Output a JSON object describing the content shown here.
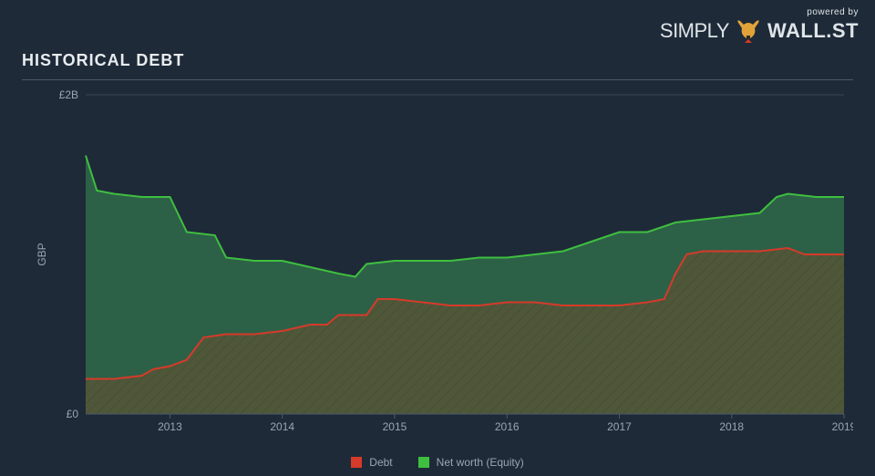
{
  "branding": {
    "powered_by": "powered by",
    "brand_simply": "SIMPLY",
    "brand_wallst": "WALL.ST"
  },
  "title": "HISTORICAL DEBT",
  "chart": {
    "type": "area",
    "background_color": "#1e2a38",
    "grid_color": "#4a5a6a",
    "axis_text_color": "#9aa6b2",
    "y_axis": {
      "label": "GBP",
      "ticks": [
        {
          "value": 0,
          "label": "£0"
        },
        {
          "value": 2.0,
          "label": "£2B"
        }
      ],
      "ylim": [
        0,
        2.0
      ]
    },
    "x_axis": {
      "xlim": [
        2012.25,
        2019.0
      ],
      "ticks": [
        2013,
        2014,
        2015,
        2016,
        2017,
        2018,
        2019
      ]
    },
    "series": [
      {
        "id": "total",
        "label": "Net worth (Equity)",
        "line_color": "#3fbf3f",
        "fill_color": "#2f6b4a",
        "fill_opacity": 0.85,
        "line_width": 2,
        "points": [
          {
            "x": 2012.25,
            "y": 1.62
          },
          {
            "x": 2012.35,
            "y": 1.4
          },
          {
            "x": 2012.5,
            "y": 1.38
          },
          {
            "x": 2012.75,
            "y": 1.36
          },
          {
            "x": 2013.0,
            "y": 1.36
          },
          {
            "x": 2013.15,
            "y": 1.14
          },
          {
            "x": 2013.4,
            "y": 1.12
          },
          {
            "x": 2013.5,
            "y": 0.98
          },
          {
            "x": 2013.75,
            "y": 0.96
          },
          {
            "x": 2014.0,
            "y": 0.96
          },
          {
            "x": 2014.25,
            "y": 0.92
          },
          {
            "x": 2014.5,
            "y": 0.88
          },
          {
            "x": 2014.65,
            "y": 0.86
          },
          {
            "x": 2014.75,
            "y": 0.94
          },
          {
            "x": 2015.0,
            "y": 0.96
          },
          {
            "x": 2015.5,
            "y": 0.96
          },
          {
            "x": 2015.75,
            "y": 0.98
          },
          {
            "x": 2016.0,
            "y": 0.98
          },
          {
            "x": 2016.25,
            "y": 1.0
          },
          {
            "x": 2016.5,
            "y": 1.02
          },
          {
            "x": 2016.75,
            "y": 1.08
          },
          {
            "x": 2017.0,
            "y": 1.14
          },
          {
            "x": 2017.25,
            "y": 1.14
          },
          {
            "x": 2017.5,
            "y": 1.2
          },
          {
            "x": 2017.75,
            "y": 1.22
          },
          {
            "x": 2018.0,
            "y": 1.24
          },
          {
            "x": 2018.25,
            "y": 1.26
          },
          {
            "x": 2018.4,
            "y": 1.36
          },
          {
            "x": 2018.5,
            "y": 1.38
          },
          {
            "x": 2018.75,
            "y": 1.36
          },
          {
            "x": 2019.0,
            "y": 1.36
          }
        ]
      },
      {
        "id": "debt",
        "label": "Debt",
        "line_color": "#d63a2a",
        "fill_color": "#5a5436",
        "fill_opacity": 0.78,
        "hatch": true,
        "hatch_color": "#3a3a2a",
        "line_width": 2,
        "points": [
          {
            "x": 2012.25,
            "y": 0.22
          },
          {
            "x": 2012.5,
            "y": 0.22
          },
          {
            "x": 2012.75,
            "y": 0.24
          },
          {
            "x": 2012.85,
            "y": 0.28
          },
          {
            "x": 2013.0,
            "y": 0.3
          },
          {
            "x": 2013.15,
            "y": 0.34
          },
          {
            "x": 2013.3,
            "y": 0.48
          },
          {
            "x": 2013.5,
            "y": 0.5
          },
          {
            "x": 2013.75,
            "y": 0.5
          },
          {
            "x": 2014.0,
            "y": 0.52
          },
          {
            "x": 2014.25,
            "y": 0.56
          },
          {
            "x": 2014.4,
            "y": 0.56
          },
          {
            "x": 2014.5,
            "y": 0.62
          },
          {
            "x": 2014.75,
            "y": 0.62
          },
          {
            "x": 2014.85,
            "y": 0.72
          },
          {
            "x": 2015.0,
            "y": 0.72
          },
          {
            "x": 2015.25,
            "y": 0.7
          },
          {
            "x": 2015.5,
            "y": 0.68
          },
          {
            "x": 2015.75,
            "y": 0.68
          },
          {
            "x": 2016.0,
            "y": 0.7
          },
          {
            "x": 2016.25,
            "y": 0.7
          },
          {
            "x": 2016.5,
            "y": 0.68
          },
          {
            "x": 2016.75,
            "y": 0.68
          },
          {
            "x": 2017.0,
            "y": 0.68
          },
          {
            "x": 2017.25,
            "y": 0.7
          },
          {
            "x": 2017.4,
            "y": 0.72
          },
          {
            "x": 2017.5,
            "y": 0.88
          },
          {
            "x": 2017.6,
            "y": 1.0
          },
          {
            "x": 2017.75,
            "y": 1.02
          },
          {
            "x": 2018.0,
            "y": 1.02
          },
          {
            "x": 2018.25,
            "y": 1.02
          },
          {
            "x": 2018.5,
            "y": 1.04
          },
          {
            "x": 2018.65,
            "y": 1.0
          },
          {
            "x": 2018.75,
            "y": 1.0
          },
          {
            "x": 2019.0,
            "y": 1.0
          }
        ]
      }
    ],
    "legend": {
      "position": "bottom",
      "items": [
        {
          "swatch": "#d63a2a",
          "label": "Debt"
        },
        {
          "swatch": "#3fbf3f",
          "label": "Net worth (Equity)"
        }
      ]
    }
  }
}
